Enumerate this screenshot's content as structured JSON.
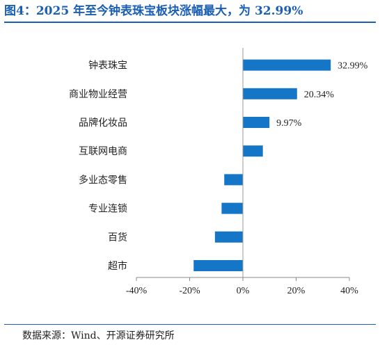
{
  "header": {
    "title": "图4：2025 年至今钟表珠宝板块涨幅最大，为 32.99%"
  },
  "footer": {
    "source": "数据来源：Wind、开源证券研究所"
  },
  "colors": {
    "accent": "#1a5fb4",
    "bar": "#1576c8"
  },
  "chart_data": {
    "type": "bar",
    "orientation": "horizontal",
    "categories": [
      "钟表珠宝",
      "商业物业经营",
      "品牌化妆品",
      "互联网电商",
      "多业态零售",
      "专业连锁",
      "百货",
      "超市"
    ],
    "values": [
      32.99,
      20.34,
      9.97,
      7.5,
      -7.0,
      -8.0,
      -10.5,
      -18.5
    ],
    "data_labels": [
      "32.99%",
      "20.34%",
      "9.97%",
      "",
      "",
      "",
      "",
      ""
    ],
    "xlim": [
      -40,
      40
    ],
    "xticks": [
      -40,
      -20,
      0,
      20,
      40
    ],
    "xtick_labels": [
      "-40%",
      "-20%",
      "0%",
      "20%",
      "40%"
    ],
    "grid": false
  }
}
